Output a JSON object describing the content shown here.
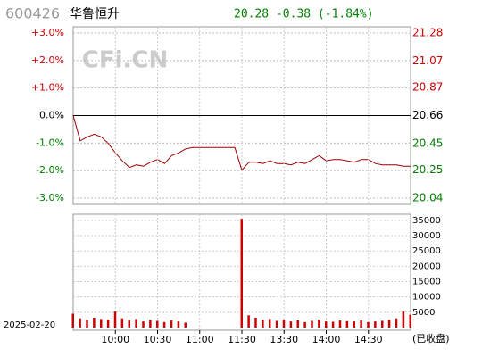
{
  "header": {
    "code": "600426",
    "name": "华鲁恒升",
    "quote": "20.28 -0.38 (-1.84%)",
    "watermark": "CFi.CN",
    "date": "2025-02-20",
    "status": "(已收盘)"
  },
  "chart_data": [
    {
      "type": "line",
      "x": [
        0,
        5,
        10,
        15,
        20,
        25,
        30,
        35,
        40,
        45,
        50,
        55,
        60,
        65,
        70,
        75,
        80,
        85,
        90,
        95,
        100,
        105,
        110,
        115,
        120,
        125,
        130,
        135,
        140,
        145,
        150,
        155,
        160,
        165,
        170,
        175,
        180,
        185,
        190,
        195,
        200,
        205,
        210,
        215,
        220,
        225,
        230,
        235,
        240
      ],
      "series": [
        {
          "name": "price",
          "color": "#990000",
          "axis": "y2",
          "values": [
            20.66,
            20.47,
            20.5,
            20.52,
            20.5,
            20.45,
            20.38,
            20.32,
            20.27,
            20.29,
            20.28,
            20.31,
            20.33,
            20.3,
            20.36,
            20.38,
            20.41,
            20.42,
            20.42,
            20.42,
            20.42,
            20.42,
            20.42,
            20.42,
            20.25,
            20.31,
            20.31,
            20.3,
            20.32,
            20.3,
            20.3,
            20.29,
            20.31,
            20.3,
            20.33,
            20.36,
            20.32,
            20.33,
            20.33,
            20.32,
            20.31,
            20.33,
            20.33,
            20.3,
            20.29,
            20.29,
            20.29,
            20.28,
            20.28
          ]
        }
      ],
      "xlim": [
        0,
        240
      ],
      "ylim": [
        -3,
        3
      ],
      "yticks": [
        {
          "value": 3,
          "label": "+3.0%"
        },
        {
          "value": 2,
          "label": "+2.0%"
        },
        {
          "value": 1,
          "label": "+1.0%"
        },
        {
          "value": 0,
          "label": "0.0%"
        },
        {
          "value": -1,
          "label": "-1.0%"
        },
        {
          "value": -2,
          "label": "-2.0%"
        },
        {
          "value": -3,
          "label": "-3.0%"
        }
      ],
      "y2lim": [
        20.04,
        21.28
      ],
      "y2ticks": [
        21.28,
        21.07,
        20.87,
        20.66,
        20.45,
        20.25,
        20.04
      ],
      "up_color": "#cc0000",
      "down_color": "#008000",
      "base_color": "#000000"
    },
    {
      "type": "bar",
      "x": [
        0,
        5,
        10,
        15,
        20,
        25,
        30,
        35,
        40,
        45,
        50,
        55,
        60,
        65,
        70,
        75,
        80,
        85,
        90,
        95,
        100,
        105,
        110,
        115,
        120,
        125,
        130,
        135,
        140,
        145,
        150,
        155,
        160,
        165,
        170,
        175,
        180,
        185,
        190,
        195,
        200,
        205,
        210,
        215,
        220,
        225,
        230,
        235,
        240
      ],
      "values": [
        4500,
        3000,
        2500,
        3200,
        2800,
        2600,
        5200,
        3000,
        2400,
        2800,
        2000,
        2500,
        2200,
        1800,
        2400,
        2000,
        1600,
        null,
        null,
        null,
        null,
        null,
        null,
        null,
        35500,
        4000,
        3200,
        2500,
        2800,
        2200,
        2600,
        2000,
        2400,
        1800,
        2200,
        2600,
        2000,
        1900,
        2300,
        2100,
        2000,
        2400,
        1800,
        2000,
        2200,
        2500,
        3000,
        5200,
        4200
      ],
      "color": "#cc0000",
      "xlim": [
        0,
        240
      ],
      "xticks": [
        {
          "value": 30,
          "label": "10:00"
        },
        {
          "value": 60,
          "label": "10:30"
        },
        {
          "value": 90,
          "label": "11:00"
        },
        {
          "value": 120,
          "label": "11:30"
        },
        {
          "value": 150,
          "label": "13:30"
        },
        {
          "value": 180,
          "label": "14:00"
        },
        {
          "value": 210,
          "label": "14:30"
        }
      ],
      "ylim": [
        0,
        37000
      ],
      "yticks": [
        35000,
        30000,
        25000,
        20000,
        15000,
        10000,
        5000
      ]
    }
  ]
}
